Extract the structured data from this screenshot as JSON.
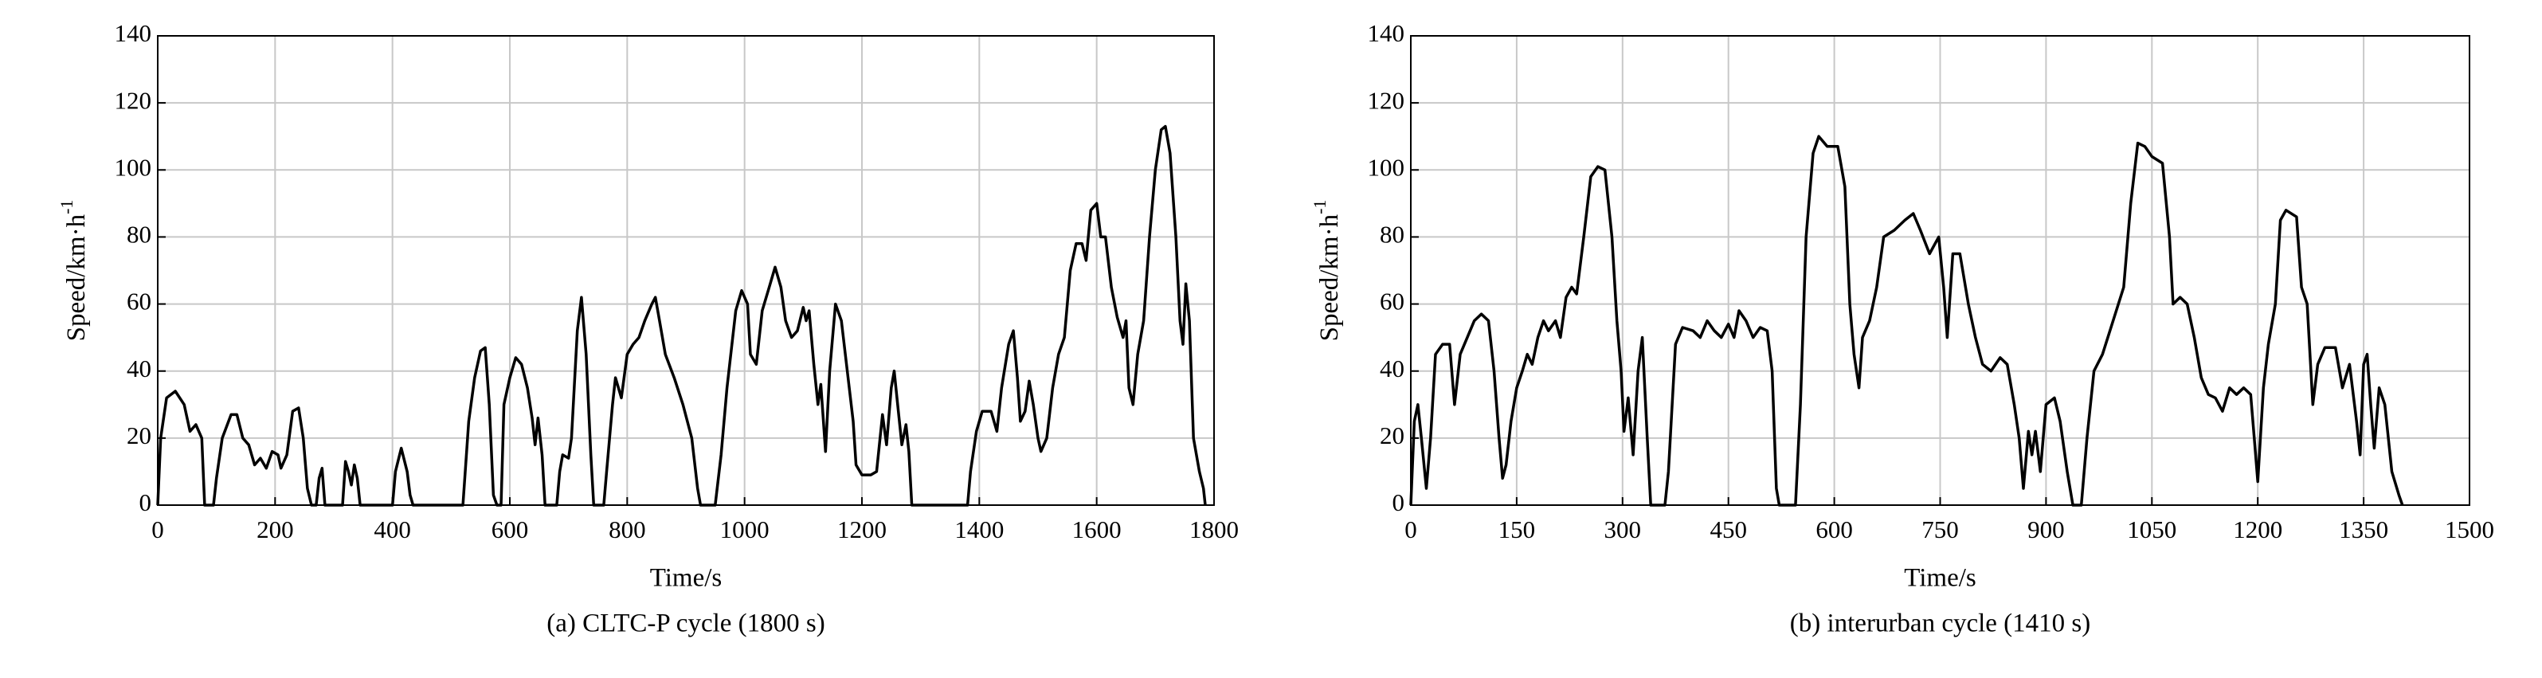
{
  "chart_data": [
    {
      "type": "line",
      "caption": "(a) CLTC-P cycle (1800 s)",
      "xlabel": "Time/s",
      "ylabel": "Speed/km·h",
      "ylabel_sup": "-1",
      "xlim": [
        0,
        1800
      ],
      "xticks": [
        0,
        200,
        400,
        600,
        800,
        1000,
        1200,
        1400,
        1600,
        1800
      ],
      "ylim": [
        0,
        140
      ],
      "yticks": [
        0,
        20,
        40,
        60,
        80,
        100,
        120,
        140
      ],
      "grid": true,
      "color": "#000000",
      "x": [
        0,
        5,
        15,
        30,
        45,
        55,
        65,
        75,
        80,
        95,
        100,
        110,
        125,
        135,
        145,
        155,
        165,
        175,
        185,
        195,
        205,
        210,
        220,
        230,
        240,
        248,
        255,
        262,
        270,
        275,
        280,
        285,
        315,
        320,
        325,
        330,
        335,
        340,
        345,
        400,
        405,
        415,
        425,
        430,
        435,
        520,
        530,
        540,
        550,
        558,
        565,
        572,
        578,
        585,
        590,
        600,
        610,
        620,
        630,
        638,
        643,
        648,
        655,
        660,
        680,
        685,
        690,
        700,
        705,
        715,
        722,
        730,
        738,
        743,
        760,
        765,
        775,
        780,
        790,
        800,
        810,
        820,
        830,
        842,
        848,
        855,
        865,
        880,
        895,
        910,
        920,
        925,
        950,
        960,
        970,
        985,
        995,
        1005,
        1010,
        1020,
        1030,
        1042,
        1052,
        1062,
        1070,
        1080,
        1090,
        1100,
        1105,
        1110,
        1118,
        1125,
        1130,
        1138,
        1145,
        1155,
        1165,
        1175,
        1185,
        1190,
        1200,
        1215,
        1225,
        1235,
        1242,
        1250,
        1255,
        1262,
        1268,
        1275,
        1280,
        1285,
        1380,
        1385,
        1395,
        1405,
        1420,
        1430,
        1438,
        1450,
        1458,
        1465,
        1470,
        1478,
        1485,
        1492,
        1500,
        1505,
        1515,
        1525,
        1535,
        1545,
        1555,
        1565,
        1575,
        1582,
        1590,
        1600,
        1607,
        1615,
        1625,
        1635,
        1645,
        1650,
        1655,
        1662,
        1670,
        1680,
        1690,
        1700,
        1710,
        1717,
        1725,
        1735,
        1742,
        1747,
        1752,
        1758,
        1765,
        1775,
        1782,
        1785
      ],
      "values": [
        0,
        20,
        32,
        34,
        30,
        22,
        24,
        20,
        0,
        0,
        8,
        20,
        27,
        27,
        20,
        18,
        12,
        14,
        11,
        16,
        15,
        11,
        15,
        28,
        29,
        20,
        5,
        0,
        0,
        8,
        11,
        0,
        0,
        13,
        10,
        6,
        12,
        8,
        0,
        0,
        10,
        17,
        10,
        3,
        0,
        0,
        25,
        38,
        46,
        47,
        30,
        3,
        0,
        0,
        30,
        38,
        44,
        42,
        35,
        26,
        18,
        26,
        15,
        0,
        0,
        10,
        15,
        14,
        20,
        52,
        62,
        45,
        15,
        0,
        0,
        10,
        30,
        38,
        32,
        45,
        48,
        50,
        55,
        60,
        62,
        55,
        45,
        38,
        30,
        20,
        5,
        0,
        0,
        15,
        35,
        58,
        64,
        60,
        45,
        42,
        58,
        65,
        71,
        65,
        55,
        50,
        52,
        59,
        55,
        58,
        42,
        30,
        36,
        16,
        40,
        60,
        55,
        40,
        25,
        12,
        9,
        9,
        10,
        27,
        18,
        35,
        40,
        28,
        18,
        24,
        16,
        0,
        0,
        10,
        22,
        28,
        28,
        22,
        35,
        48,
        52,
        38,
        25,
        28,
        37,
        30,
        20,
        16,
        20,
        35,
        45,
        50,
        70,
        78,
        78,
        73,
        88,
        90,
        80,
        80,
        65,
        56,
        50,
        55,
        35,
        30,
        45,
        55,
        80,
        100,
        112,
        113,
        105,
        80,
        55,
        48,
        66,
        55,
        20,
        10,
        5,
        0
      ]
    },
    {
      "type": "line",
      "caption": "(b) interurban cycle (1410 s)",
      "xlabel": "Time/s",
      "ylabel": "Speed/km·h",
      "ylabel_sup": "-1",
      "xlim": [
        0,
        1500
      ],
      "xticks": [
        0,
        150,
        300,
        450,
        600,
        750,
        900,
        1050,
        1200,
        1350,
        1500
      ],
      "ylim": [
        0,
        140
      ],
      "yticks": [
        0,
        20,
        40,
        60,
        80,
        100,
        120,
        140
      ],
      "grid": true,
      "color": "#000000",
      "x": [
        0,
        5,
        10,
        15,
        22,
        28,
        35,
        45,
        55,
        62,
        70,
        80,
        90,
        100,
        110,
        118,
        125,
        130,
        135,
        142,
        150,
        158,
        165,
        172,
        180,
        188,
        195,
        205,
        212,
        220,
        228,
        235,
        245,
        255,
        265,
        275,
        285,
        292,
        298,
        302,
        308,
        315,
        322,
        328,
        335,
        340,
        360,
        365,
        375,
        385,
        400,
        410,
        420,
        430,
        440,
        450,
        458,
        465,
        475,
        485,
        495,
        505,
        512,
        518,
        522,
        545,
        552,
        560,
        570,
        578,
        590,
        605,
        615,
        622,
        628,
        635,
        640,
        650,
        660,
        670,
        685,
        700,
        712,
        722,
        735,
        748,
        755,
        760,
        768,
        778,
        790,
        800,
        810,
        822,
        835,
        845,
        855,
        862,
        868,
        875,
        880,
        885,
        892,
        900,
        912,
        920,
        930,
        938,
        950,
        958,
        968,
        980,
        995,
        1010,
        1020,
        1030,
        1040,
        1050,
        1065,
        1075,
        1080,
        1090,
        1100,
        1110,
        1120,
        1130,
        1140,
        1150,
        1160,
        1170,
        1180,
        1190,
        1195,
        1200,
        1208,
        1215,
        1225,
        1232,
        1240,
        1255,
        1262,
        1270,
        1278,
        1285,
        1295,
        1310,
        1320,
        1330,
        1340,
        1345,
        1350,
        1355,
        1360,
        1365,
        1372,
        1380,
        1390,
        1400,
        1405
      ],
      "values": [
        0,
        25,
        30,
        20,
        5,
        20,
        45,
        48,
        48,
        30,
        45,
        50,
        55,
        57,
        55,
        40,
        20,
        8,
        12,
        25,
        35,
        40,
        45,
        42,
        50,
        55,
        52,
        55,
        50,
        62,
        65,
        63,
        80,
        98,
        101,
        100,
        80,
        55,
        40,
        22,
        32,
        15,
        40,
        50,
        20,
        0,
        0,
        10,
        48,
        53,
        52,
        50,
        55,
        52,
        50,
        54,
        50,
        58,
        55,
        50,
        53,
        52,
        40,
        5,
        0,
        0,
        30,
        80,
        105,
        110,
        107,
        107,
        95,
        60,
        45,
        35,
        50,
        55,
        65,
        80,
        82,
        85,
        87,
        82,
        75,
        80,
        65,
        50,
        75,
        75,
        60,
        50,
        42,
        40,
        44,
        42,
        30,
        20,
        5,
        22,
        15,
        22,
        10,
        30,
        32,
        25,
        10,
        0,
        0,
        20,
        40,
        45,
        55,
        65,
        90,
        108,
        107,
        104,
        102,
        80,
        60,
        62,
        60,
        50,
        38,
        33,
        32,
        28,
        35,
        33,
        35,
        33,
        20,
        7,
        35,
        48,
        60,
        85,
        88,
        86,
        65,
        60,
        30,
        42,
        47,
        47,
        35,
        42,
        25,
        15,
        42,
        45,
        30,
        17,
        35,
        30,
        10,
        3,
        0
      ]
    }
  ]
}
